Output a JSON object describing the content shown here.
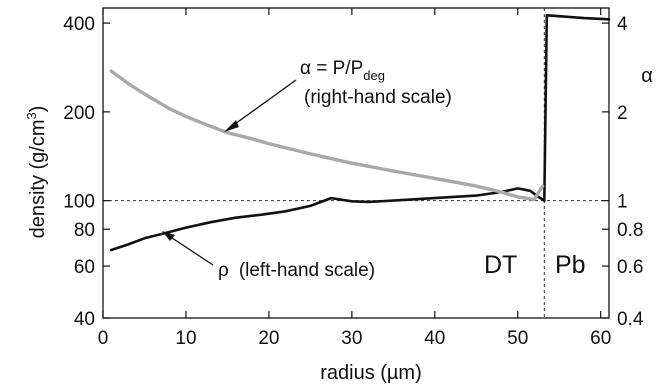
{
  "chart_data": {
    "type": "line",
    "title": "",
    "xlabel": "radius (µm)",
    "ylabel_left": "density (g/cm³)",
    "ylabel_left_parts": {
      "main": "density (g/cm",
      "sup": "3",
      "tail": ")"
    },
    "ylabel_right": "α",
    "xlim": [
      0,
      61
    ],
    "ylim_left": [
      40,
      450
    ],
    "ylim_right": [
      0.4,
      4.5
    ],
    "yscale": "log",
    "grid": false,
    "x_ticks": [
      0,
      10,
      20,
      30,
      40,
      50,
      60
    ],
    "x_tick_labels": [
      "0",
      "10",
      "20",
      "30",
      "40",
      "50",
      "60"
    ],
    "y_left_ticks": [
      40,
      60,
      80,
      100,
      200,
      400
    ],
    "y_left_tick_labels": [
      "40",
      "60",
      "80",
      "100",
      "200",
      "400"
    ],
    "y_right_ticks": [
      0.4,
      0.6,
      0.8,
      1,
      2,
      4
    ],
    "y_right_tick_labels": [
      "0.4",
      "0.6",
      "0.8",
      "1",
      "2",
      "4"
    ],
    "reference_line_y": 100,
    "interface_x": 53.2,
    "series": [
      {
        "axis": "left",
        "color": "#111111",
        "points": [
          [
            1,
            68
          ],
          [
            3,
            71
          ],
          [
            5,
            74.5
          ],
          [
            7,
            77
          ],
          [
            10,
            81
          ],
          [
            13,
            84.5
          ],
          [
            16,
            87.5
          ],
          [
            19,
            89.5
          ],
          [
            22,
            92
          ],
          [
            25,
            96
          ],
          [
            27.5,
            102
          ],
          [
            30,
            99.5
          ],
          [
            32,
            99
          ],
          [
            35,
            100
          ],
          [
            40,
            102
          ],
          [
            45,
            104
          ],
          [
            48,
            107
          ],
          [
            50,
            110
          ],
          [
            51.5,
            108
          ],
          [
            52.5,
            103
          ],
          [
            53.2,
            100
          ],
          [
            53.5,
            425
          ],
          [
            56,
            420
          ],
          [
            58,
            416
          ],
          [
            61,
            412
          ]
        ]
      },
      {
        "axis": "right",
        "color": "#a8a8a8",
        "points": [
          [
            1,
            2.75
          ],
          [
            3,
            2.5
          ],
          [
            5,
            2.3
          ],
          [
            8,
            2.05
          ],
          [
            10,
            1.93
          ],
          [
            12,
            1.83
          ],
          [
            15,
            1.7
          ],
          [
            18,
            1.62
          ],
          [
            20,
            1.56
          ],
          [
            25,
            1.44
          ],
          [
            30,
            1.34
          ],
          [
            35,
            1.26
          ],
          [
            40,
            1.19
          ],
          [
            45,
            1.12
          ],
          [
            48,
            1.07
          ],
          [
            50,
            1.03
          ],
          [
            52,
            1.01
          ],
          [
            53,
            1.12
          ]
        ]
      }
    ],
    "annotations": [
      {
        "id": "alpha",
        "line1": "α = P/P",
        "line1_sub": "deg",
        "line2": "(right-hand scale)"
      },
      {
        "id": "rho",
        "symbol": "ρ",
        "text": "(left-hand scale)"
      }
    ],
    "regions": [
      "DT",
      "Pb"
    ]
  }
}
